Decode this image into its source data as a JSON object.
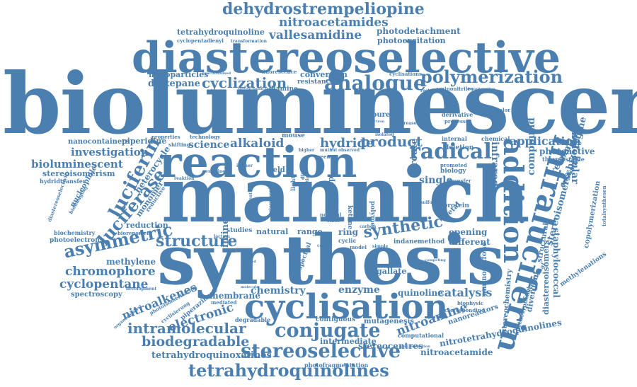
{
  "cloud": {
    "color": "#4a7fb0",
    "background": "#ffffff",
    "words": [
      {
        "text": "bioluminescence",
        "orientation": "horizontal"
      },
      {
        "text": "mannich",
        "orientation": "horizontal"
      },
      {
        "text": "synthesis",
        "orientation": "horizontal"
      },
      {
        "text": "diastereoselective",
        "orientation": "horizontal"
      },
      {
        "text": "reaction",
        "orientation": "horizontal"
      },
      {
        "text": "cyclisation",
        "orientation": "horizontal"
      },
      {
        "text": "infraluciferin",
        "orientation": "vertical"
      },
      {
        "text": "addition",
        "orientation": "vertical"
      },
      {
        "text": "dehydrostrempeliopine",
        "orientation": "horizontal"
      },
      {
        "text": "nitroacetamides",
        "orientation": "horizontal"
      },
      {
        "text": "tetrahydroquinoline",
        "orientation": "horizontal"
      },
      {
        "text": "photodetachment",
        "orientation": "horizontal"
      },
      {
        "text": "vallesamidine",
        "orientation": "horizontal"
      },
      {
        "text": "photoexcitation",
        "orientation": "horizontal"
      },
      {
        "text": "cyclopentadienyl",
        "orientation": "horizontal"
      },
      {
        "text": "transformation",
        "orientation": "horizontal"
      },
      {
        "text": "analogue",
        "orientation": "horizontal"
      },
      {
        "text": "polymerization",
        "orientation": "horizontal"
      },
      {
        "text": "nanoparticles",
        "orientation": "horizontal"
      },
      {
        "text": "conversion",
        "orientation": "horizontal"
      },
      {
        "text": "cyclisations",
        "orientation": "horizontal"
      },
      {
        "text": "dioxepane",
        "orientation": "horizontal"
      },
      {
        "text": "cyclization",
        "orientation": "horizontal"
      },
      {
        "text": "resistance",
        "orientation": "horizontal"
      },
      {
        "text": "fluorescence",
        "orientation": "horizontal"
      },
      {
        "text": "diamine",
        "orientation": "horizontal"
      },
      {
        "text": "aminonitriles",
        "orientation": "horizontal"
      },
      {
        "text": "thiourea",
        "orientation": "horizontal"
      },
      {
        "text": "derivative",
        "orientation": "horizontal"
      },
      {
        "text": "multicolor",
        "orientation": "horizontal"
      },
      {
        "text": "processes",
        "orientation": "horizontal"
      },
      {
        "text": "nanocontainers",
        "orientation": "horizontal"
      },
      {
        "text": "piperidine",
        "orientation": "horizontal"
      },
      {
        "text": "properties",
        "orientation": "horizontal"
      },
      {
        "text": "technology",
        "orientation": "horizontal"
      },
      {
        "text": "investigation",
        "orientation": "horizontal"
      },
      {
        "text": "science",
        "orientation": "horizontal"
      },
      {
        "text": "alkaloid",
        "orientation": "horizontal"
      },
      {
        "text": "hydride",
        "orientation": "horizontal"
      },
      {
        "text": "product",
        "orientation": "horizontal"
      },
      {
        "text": "radical",
        "orientation": "horizontal"
      },
      {
        "text": "application",
        "orientation": "horizontal"
      },
      {
        "text": "photoactive",
        "orientation": "horizontal"
      },
      {
        "text": "thermostable",
        "orientation": "horizontal"
      },
      {
        "text": "bioluminescent",
        "orientation": "horizontal"
      },
      {
        "text": "stereoisomerism",
        "orientation": "horizontal"
      },
      {
        "text": "hydridtransfer",
        "orientation": "horizontal"
      },
      {
        "text": "luciferin",
        "orientation": "rotated"
      },
      {
        "text": "heterocycle",
        "orientation": "rotated"
      },
      {
        "text": "luciferase",
        "orientation": "rotated"
      },
      {
        "text": "nucleophile",
        "orientation": "rotated"
      },
      {
        "text": "monomer",
        "orientation": "rotated"
      },
      {
        "text": "reduction",
        "orientation": "horizontal"
      },
      {
        "text": "infrared",
        "orientation": "vertical"
      },
      {
        "text": "route",
        "orientation": "vertical"
      },
      {
        "text": "single",
        "orientation": "horizontal"
      },
      {
        "text": "biology",
        "orientation": "horizontal"
      },
      {
        "text": "protein",
        "orientation": "horizontal"
      },
      {
        "text": "molecular",
        "orientation": "vertical"
      },
      {
        "text": "compound",
        "orientation": "vertical"
      },
      {
        "text": "relaxation",
        "orientation": "rotated"
      },
      {
        "text": "emission",
        "orientation": "rotated"
      },
      {
        "text": "stereoisomerschizozygine",
        "orientation": "vertical"
      },
      {
        "text": "staphylococcal",
        "orientation": "vertical"
      },
      {
        "text": "structural",
        "orientation": "vertical"
      },
      {
        "text": "copolymerization",
        "orientation": "vertical"
      },
      {
        "text": "totalsynthesen",
        "orientation": "vertical"
      },
      {
        "text": "methylenations",
        "orientation": "rotated"
      },
      {
        "text": "diastereoisomers",
        "orientation": "vertical"
      },
      {
        "text": "asymmetric",
        "orientation": "horizontal"
      },
      {
        "text": "structure",
        "orientation": "horizontal"
      },
      {
        "text": "synthetic",
        "orientation": "horizontal"
      },
      {
        "text": "ring",
        "orientation": "horizontal"
      },
      {
        "text": "opening",
        "orientation": "horizontal"
      },
      {
        "text": "different",
        "orientation": "horizontal"
      },
      {
        "text": "indane",
        "orientation": "horizontal"
      },
      {
        "text": "method",
        "orientation": "horizontal"
      },
      {
        "text": "cyclic",
        "orientation": "horizontal"
      },
      {
        "text": "range",
        "orientation": "horizontal"
      },
      {
        "text": "natural",
        "orientation": "horizontal"
      },
      {
        "text": "studies",
        "orientation": "horizontal"
      },
      {
        "text": "methylene",
        "orientation": "horizontal"
      },
      {
        "text": "chromophore",
        "orientation": "horizontal"
      },
      {
        "text": "cyclopentane",
        "orientation": "horizontal"
      },
      {
        "text": "photoelectron",
        "orientation": "horizontal"
      },
      {
        "text": "biochemistry",
        "orientation": "horizontal"
      },
      {
        "text": "bioreporter",
        "orientation": "horizontal"
      },
      {
        "text": "spectroscopy",
        "orientation": "horizontal"
      },
      {
        "text": "nitroalkenes",
        "orientation": "rotated"
      },
      {
        "text": "electronic",
        "orientation": "rotated"
      },
      {
        "text": "imine",
        "orientation": "vertical"
      },
      {
        "text": "membrane",
        "orientation": "horizontal"
      },
      {
        "text": "chemistry",
        "orientation": "horizontal"
      },
      {
        "text": "enzyme",
        "orientation": "horizontal"
      },
      {
        "text": "quinoline",
        "orientation": "horizontal"
      },
      {
        "text": "catalysis",
        "orientation": "horizontal"
      },
      {
        "text": "gallate",
        "orientation": "horizontal"
      },
      {
        "text": "aminosulfone",
        "orientation": "vertical"
      },
      {
        "text": "divergent",
        "orientation": "vertical"
      },
      {
        "text": "stereochemistry",
        "orientation": "vertical"
      },
      {
        "text": "intramolecular",
        "orientation": "horizontal"
      },
      {
        "text": "conjugate",
        "orientation": "horizontal"
      },
      {
        "text": "nitroamine",
        "orientation": "rotated"
      },
      {
        "text": "nanoreactors",
        "orientation": "rotated"
      },
      {
        "text": "biodegradable",
        "orientation": "horizontal"
      },
      {
        "text": "stereoselective",
        "orientation": "horizontal"
      },
      {
        "text": "intermediate",
        "orientation": "horizontal"
      },
      {
        "text": "stereocentres",
        "orientation": "horizontal"
      },
      {
        "text": "nitroacetamide",
        "orientation": "horizontal"
      },
      {
        "text": "tetrahydroquinoxalines",
        "orientation": "horizontal"
      },
      {
        "text": "tetrahydroquinolines",
        "orientation": "horizontal"
      },
      {
        "text": "nitrotetrahydroquinolines",
        "orientation": "horizontal"
      },
      {
        "text": "contiguous",
        "orientation": "horizontal"
      },
      {
        "text": "mutagenesis",
        "orientation": "horizontal"
      },
      {
        "text": "degradable",
        "orientation": "horizontal"
      },
      {
        "text": "photofragmentation",
        "orientation": "horizontal"
      },
      {
        "text": "piperazinone",
        "orientation": "rotated"
      },
      {
        "text": "corresponding",
        "orientation": "horizontal"
      },
      {
        "text": "biophysic",
        "orientation": "horizontal"
      },
      {
        "text": "computational",
        "orientation": "horizontal"
      },
      {
        "text": "mouse",
        "orientation": "horizontal"
      },
      {
        "text": "yield",
        "orientation": "horizontal"
      },
      {
        "text": "green",
        "orientation": "horizontal"
      },
      {
        "text": "deletion",
        "orientation": "horizontal"
      },
      {
        "text": "internal",
        "orientation": "horizontal"
      },
      {
        "text": "chemical",
        "orientation": "horizontal"
      },
      {
        "text": "transfer",
        "orientation": "horizontal"
      },
      {
        "text": "promoted",
        "orientation": "horizontal"
      },
      {
        "text": "group",
        "orientation": "vertical"
      },
      {
        "text": "polymer",
        "orientation": "vertical"
      },
      {
        "text": "ketone",
        "orientation": "vertical"
      },
      {
        "text": "acetal",
        "orientation": "rotated"
      },
      {
        "text": "spectral",
        "orientation": "rotated"
      },
      {
        "text": "mediated",
        "orientation": "horizontal"
      },
      {
        "text": "conventional",
        "orientation": "rotated"
      },
      {
        "text": "methoxyphenyl",
        "orientation": "rotated"
      },
      {
        "text": "cyclisierung",
        "orientation": "rotated"
      },
      {
        "text": "photoisomerisation",
        "orientation": "rotated"
      },
      {
        "text": "diastereoselectivity",
        "orientation": "rotated"
      },
      {
        "text": "bioimaging",
        "orientation": "rotated"
      },
      {
        "text": "reductive",
        "orientation": "rotated"
      },
      {
        "text": "shifting",
        "orientation": "horizontal"
      },
      {
        "text": "functionalised",
        "orientation": "horizontal"
      },
      {
        "text": "stereochemical",
        "orientation": "horizontal"
      },
      {
        "text": "restricted",
        "orientation": "horizontal"
      },
      {
        "text": "deprotonation",
        "orientation": "horizontal"
      },
      {
        "text": "electron",
        "orientation": "horizontal"
      },
      {
        "text": "increases",
        "orientation": "horizontal"
      },
      {
        "text": "isolated",
        "orientation": "horizontal"
      },
      {
        "text": "higher",
        "orientation": "horizontal"
      },
      {
        "text": "mutant",
        "orientation": "horizontal"
      },
      {
        "text": "observed",
        "orientation": "horizontal"
      },
      {
        "text": "novel",
        "orientation": "horizontal"
      },
      {
        "text": "total",
        "orientation": "horizontal"
      },
      {
        "text": "static",
        "orientation": "horizontal"
      },
      {
        "text": "carbon",
        "orientation": "horizontal"
      },
      {
        "text": "model",
        "orientation": "horizontal"
      },
      {
        "text": "simple",
        "orientation": "horizontal"
      },
      {
        "text": "colour",
        "orientation": "horizontal"
      },
      {
        "text": "sulfone",
        "orientation": "horizontal"
      },
      {
        "text": "competing",
        "orientation": "horizontal"
      },
      {
        "text": "bridged",
        "orientation": "horizontal"
      },
      {
        "text": "molecule",
        "orientation": "horizontal"
      },
      {
        "text": "development",
        "orientation": "horizontal"
      },
      {
        "text": "organocatalyst",
        "orientation": "rotated"
      },
      {
        "text": "polymerisation",
        "orientation": "horizontal"
      },
      {
        "text": "lactam",
        "orientation": "horizontal"
      },
      {
        "text": "reaktion",
        "orientation": "horizontal"
      },
      {
        "text": "examine",
        "orientation": "horizontal"
      },
      {
        "text": "isomer",
        "orientation": "horizontal"
      },
      {
        "text": "dimer",
        "orientation": "vertical"
      },
      {
        "text": "modification",
        "orientation": "vertical"
      },
      {
        "text": "stereocenter",
        "orientation": "vertical"
      },
      {
        "text": "cascade",
        "orientation": "vertical"
      },
      {
        "text": "light",
        "orientation": "vertical"
      },
      {
        "text": "efficient",
        "orientation": "vertical"
      }
    ]
  }
}
